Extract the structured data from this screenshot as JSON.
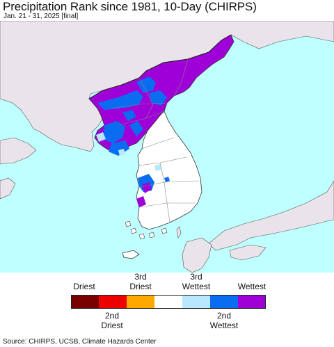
{
  "header": {
    "title": "Precipitation Rank since 1981, 10-Day (CHIRPS)",
    "subtitle": "Jan. 21 - 31, 2025 [final]"
  },
  "map": {
    "colors": {
      "ocean": "#bfffff",
      "land_outside": "#e8e4ea",
      "land_analysis": "#ffffff",
      "wettest": "#a000d8",
      "second_wettest": "#0a6cf0",
      "third_wettest": "#b8e8ff",
      "border": "#333333",
      "province_border": "#888888"
    }
  },
  "legend": {
    "top_labels": [
      "Driest",
      "3rd\nDriest",
      "3rd\nWettest",
      "Wettest"
    ],
    "bottom_labels": [
      "2nd\nDriest",
      "2nd\nWettest"
    ],
    "swatches": [
      {
        "name": "driest",
        "color": "#7a0000"
      },
      {
        "name": "second-driest",
        "color": "#ee0000"
      },
      {
        "name": "third-driest",
        "color": "#ffa800"
      },
      {
        "name": "normal",
        "color": "#ffffff"
      },
      {
        "name": "third-wettest",
        "color": "#b8e8ff"
      },
      {
        "name": "second-wettest",
        "color": "#0a6cf0"
      },
      {
        "name": "wettest",
        "color": "#a000d8"
      }
    ]
  },
  "footer": {
    "source": "Source: CHIRPS, UCSB, Climate Hazards Center"
  }
}
